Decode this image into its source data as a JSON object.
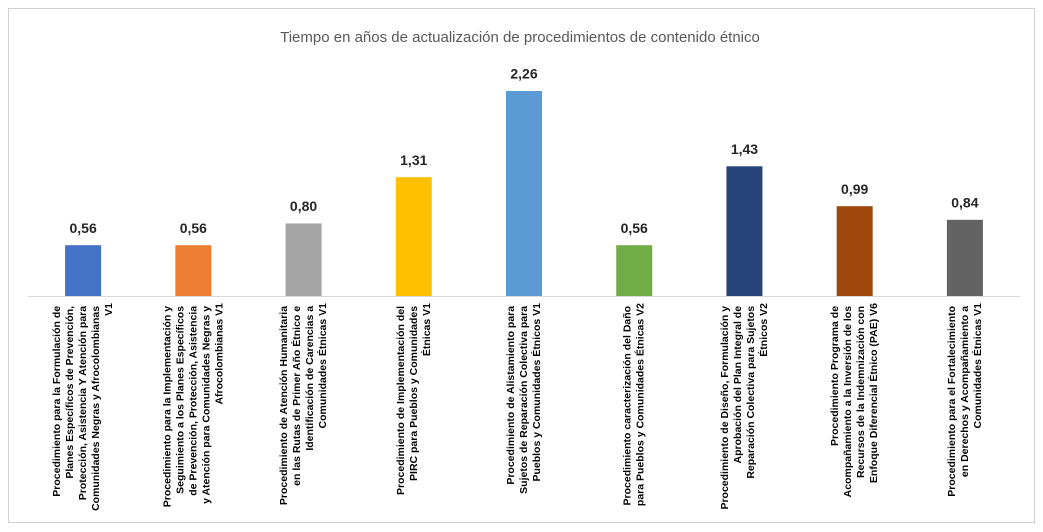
{
  "chart_data": {
    "type": "bar",
    "title": "Tiempo en años de actualización de procedimientos de contenido étnico",
    "categories": [
      "Procedimiento para la Formulación de Planes Específicos de Prevención, Protección, Asistencia Y Atención para Comunidades Negras y Afrocolombianas V1",
      "Procedimiento para la Implementación y Seguimiento a los Planes Específicos de Prevención, Protección, Asistencia y Atención para Comunidades Negras y Afrocolombianas V1",
      "Procedimiento de Atención Humanitaria en las Rutas de Primer Año Étnico e Identificación de Carencias a Comunidades Étnicas V1",
      "Procedimiento de Implementación del PIRC para Pueblos y Comunidades Étnicas V1",
      "Procedimiento de Alistamiento para Sujetos de Reparación Colectiva para Pueblos y Comunidades Étnicos V1",
      "Procedimiento caracterización del Daño para Pueblos y Comunidades Étnicas V2",
      "Procedimiento de Diseño, Formulación y Aprobación del Plan Integral de Reparación Colectiva para Sujetos Étnicos V2",
      "Procedimiento Programa de Acompañamiento a la Inversión de los Recursos de la Indemnización con Enfoque Diferencial Étnico (PAE) V6",
      "Procedimiento para el Fortalecimiento en Derechos y Acompañamiento a Comunidades Étnicas V1"
    ],
    "values": [
      0.56,
      0.56,
      0.8,
      1.31,
      2.26,
      0.56,
      1.43,
      0.99,
      0.84
    ],
    "value_labels": [
      "0,56",
      "0,56",
      "0,80",
      "1,31",
      "2,26",
      "0,56",
      "1,43",
      "0,99",
      "0,84"
    ],
    "colors": [
      "#4472c4",
      "#ed7d31",
      "#a5a5a5",
      "#ffc000",
      "#5b9bd5",
      "#70ad47",
      "#264478",
      "#9e480e",
      "#636363"
    ]
  }
}
